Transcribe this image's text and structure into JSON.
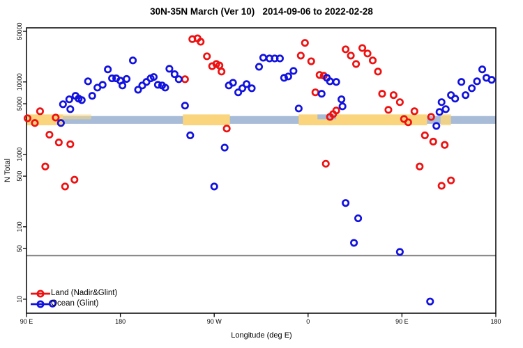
{
  "chart_data": {
    "type": "scatter",
    "title": "30N-35N March (Ver 10)   2014-09-06 to 2022-02-28",
    "xlabel": "Longitude (deg E)",
    "ylabel": "N Total",
    "x_axis": {
      "range": [
        90,
        540
      ],
      "ticks": [
        {
          "value": 90,
          "label": "90 E"
        },
        {
          "value": 180,
          "label": "180"
        },
        {
          "value": 270,
          "label": "90 W"
        },
        {
          "value": 360,
          "label": "0"
        },
        {
          "value": 450,
          "label": "90 E"
        },
        {
          "value": 540,
          "label": "180"
        }
      ]
    },
    "y_axis": {
      "scale": "log",
      "range": [
        6.5,
        56000
      ],
      "ticks": [
        {
          "value": 10,
          "label": "10"
        },
        {
          "value": 50,
          "label": "50"
        },
        {
          "value": 100,
          "label": "100"
        },
        {
          "value": 500,
          "label": "500"
        },
        {
          "value": 1000,
          "label": "1000"
        },
        {
          "value": 5000,
          "label": "5000"
        },
        {
          "value": 10000,
          "label": "10000"
        },
        {
          "value": 50000,
          "label": "50000"
        }
      ]
    },
    "threshold_line": {
      "n_value": 40,
      "color": "#7F7F7F"
    },
    "bands": {
      "ocean_band": {
        "color": "#A8BCD8",
        "lon_range": [
          90,
          540
        ],
        "n_range": [
          2640,
          3380
        ]
      },
      "land_band_color": "#FAD57D",
      "land_band_n_range": [
        2520,
        3560
      ],
      "land_segments": [
        {
          "lon": [
            90,
            125
          ],
          "part": "full",
          "opacity": 1
        },
        {
          "lon": [
            125,
            152
          ],
          "part": "top",
          "opacity": 0.55
        },
        {
          "lon": [
            240,
            285
          ],
          "part": "full",
          "opacity": 1
        },
        {
          "lon": [
            351,
            474
          ],
          "part": "full",
          "opacity": 1
        },
        {
          "lon": [
            487,
            497
          ],
          "part": "full",
          "opacity": 0.85
        }
      ],
      "ocean_patch_over_land": {
        "lon": [
          369,
          387
        ],
        "n_range": [
          3050,
          3560
        ]
      }
    },
    "legend": {
      "position": "bottom-left",
      "entries": [
        {
          "label": "Land (Nadir&Glint)",
          "color": "#EE1111"
        },
        {
          "label": "Ocean (Glint)",
          "color": "#1212DE"
        }
      ]
    },
    "series": [
      {
        "name": "Land (Nadir&Glint)",
        "color": "#EE1111",
        "marker": "open-circle",
        "points": [
          [
            91,
            3150
          ],
          [
            98,
            2710
          ],
          [
            103,
            3940
          ],
          [
            118,
            3220
          ],
          [
            112,
            1870
          ],
          [
            121,
            1460
          ],
          [
            132,
            1380
          ],
          [
            108,
            680
          ],
          [
            127,
            360
          ],
          [
            136,
            447
          ],
          [
            242,
            10900
          ],
          [
            249,
            39000
          ],
          [
            254,
            40000
          ],
          [
            257,
            35900
          ],
          [
            263,
            22600
          ],
          [
            268,
            16500
          ],
          [
            272,
            17700
          ],
          [
            275,
            16900
          ],
          [
            277,
            13900
          ],
          [
            282,
            2270
          ],
          [
            353,
            23100
          ],
          [
            357,
            34600
          ],
          [
            363,
            19300
          ],
          [
            367,
            7180
          ],
          [
            371,
            12500
          ],
          [
            375,
            12200
          ],
          [
            377,
            742
          ],
          [
            381,
            3290
          ],
          [
            384,
            3600
          ],
          [
            387,
            4030
          ],
          [
            396,
            28200
          ],
          [
            401,
            23100
          ],
          [
            406,
            17700
          ],
          [
            412,
            29400
          ],
          [
            417,
            24700
          ],
          [
            422,
            19800
          ],
          [
            427,
            13900
          ],
          [
            431,
            6870
          ],
          [
            437,
            4120
          ],
          [
            442,
            6580
          ],
          [
            448,
            5260
          ],
          [
            452,
            3080
          ],
          [
            456,
            2770
          ],
          [
            462,
            3940
          ],
          [
            467,
            680
          ],
          [
            472,
            1830
          ],
          [
            478,
            3290
          ],
          [
            480,
            1500
          ],
          [
            488,
            368
          ],
          [
            491,
            1350
          ],
          [
            497,
            437
          ]
        ]
      },
      {
        "name": "Ocean (Glint)",
        "color": "#1212DE",
        "marker": "open-circle",
        "points": [
          [
            115,
            8.7
          ],
          [
            123,
            2710
          ],
          [
            125,
            4920
          ],
          [
            131,
            5750
          ],
          [
            132,
            4210
          ],
          [
            137,
            6430
          ],
          [
            140,
            5880
          ],
          [
            143,
            5620
          ],
          [
            149,
            10200
          ],
          [
            153,
            6430
          ],
          [
            158,
            8350
          ],
          [
            163,
            9130
          ],
          [
            168,
            14900
          ],
          [
            172,
            11200
          ],
          [
            176,
            11200
          ],
          [
            180,
            10400
          ],
          [
            182,
            8930
          ],
          [
            186,
            11000
          ],
          [
            192,
            19800
          ],
          [
            197,
            7810
          ],
          [
            201,
            8930
          ],
          [
            205,
            10000
          ],
          [
            209,
            11200
          ],
          [
            212,
            11700
          ],
          [
            216,
            9130
          ],
          [
            220,
            8930
          ],
          [
            223,
            8350
          ],
          [
            227,
            15200
          ],
          [
            232,
            12800
          ],
          [
            236,
            10900
          ],
          [
            242,
            4710
          ],
          [
            247,
            1830
          ],
          [
            270,
            360
          ],
          [
            280,
            1240
          ],
          [
            284,
            8930
          ],
          [
            288,
            9750
          ],
          [
            293,
            7180
          ],
          [
            297,
            8170
          ],
          [
            301,
            9340
          ],
          [
            306,
            8170
          ],
          [
            313,
            16200
          ],
          [
            317,
            21600
          ],
          [
            323,
            21100
          ],
          [
            328,
            21100
          ],
          [
            333,
            21100
          ],
          [
            337,
            11400
          ],
          [
            341,
            11900
          ],
          [
            346,
            14200
          ],
          [
            351,
            4300
          ],
          [
            373,
            6870
          ],
          [
            378,
            11400
          ],
          [
            381,
            10200
          ],
          [
            387,
            10000
          ],
          [
            392,
            5750
          ],
          [
            393,
            4600
          ],
          [
            396,
            213
          ],
          [
            404,
            60
          ],
          [
            408,
            131
          ],
          [
            448,
            45
          ],
          [
            477,
            9.3
          ],
          [
            483,
            2470
          ],
          [
            486,
            3850
          ],
          [
            488,
            5260
          ],
          [
            492,
            4210
          ],
          [
            497,
            6580
          ],
          [
            501,
            5880
          ],
          [
            507,
            10000
          ],
          [
            511,
            6580
          ],
          [
            517,
            8170
          ],
          [
            522,
            10200
          ],
          [
            527,
            14900
          ],
          [
            531,
            11400
          ],
          [
            536,
            10700
          ]
        ]
      }
    ]
  }
}
